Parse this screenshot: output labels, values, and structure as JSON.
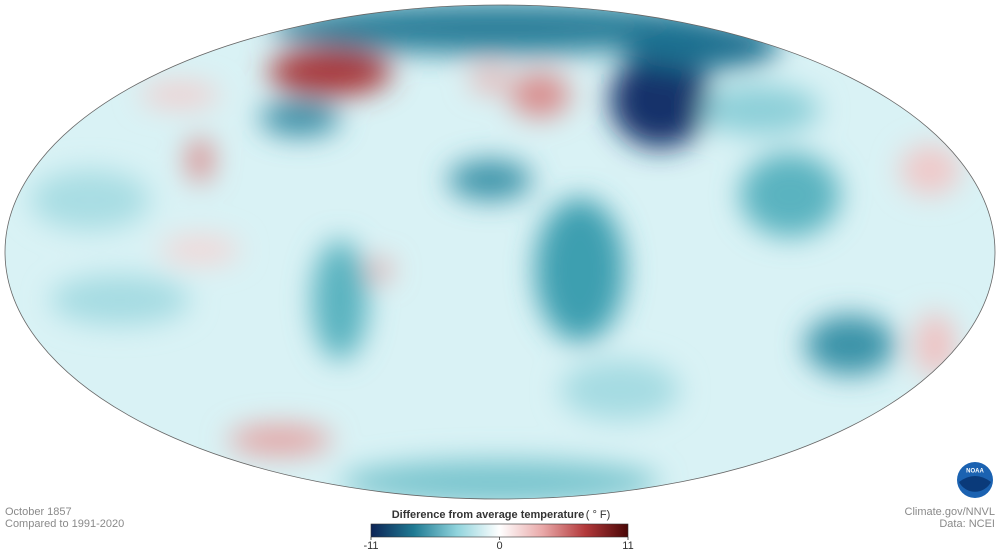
{
  "map": {
    "period": "October 1857",
    "baseline": "Compared to 1991-2020"
  },
  "colorbar": {
    "title": "Difference from average temperature",
    "unit": "( ° F)",
    "lim": [
      -11,
      11
    ],
    "ticks": [
      -11,
      0,
      11
    ],
    "colors": [
      "#0d2456",
      "#1f7a93",
      "#8fd3dc",
      "#ffffff",
      "#e9a9a9",
      "#b3393b",
      "#4a0707"
    ]
  },
  "credits": {
    "source": "Climate.gov/NNVL",
    "data": "Data: NCEI",
    "logo": "NOAA"
  }
}
